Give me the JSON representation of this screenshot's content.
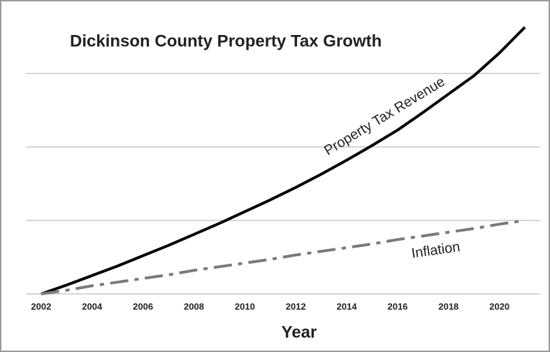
{
  "chart_data": {
    "type": "line",
    "title": "Dickinson County Property Tax Growth",
    "x_label": "Year",
    "x": [
      2002,
      2003,
      2004,
      2005,
      2006,
      2007,
      2008,
      2009,
      2010,
      2011,
      2012,
      2013,
      2014,
      2015,
      2016,
      2017,
      2018,
      2019,
      2020,
      2021
    ],
    "xlim": [
      2001.4,
      2021.6
    ],
    "xticks": [
      2002,
      2004,
      2006,
      2008,
      2010,
      2012,
      2014,
      2016,
      2018,
      2020
    ],
    "ylim": [
      0,
      4
    ],
    "yticks": [
      0,
      1,
      2,
      3
    ],
    "grid": true,
    "series": [
      {
        "name": "Property Tax Revenue",
        "color": "#000000",
        "style": "solid",
        "values": [
          0,
          0.12,
          0.25,
          0.38,
          0.52,
          0.66,
          0.81,
          0.96,
          1.12,
          1.28,
          1.45,
          1.63,
          1.82,
          2.02,
          2.23,
          2.47,
          2.72,
          2.97,
          3.28,
          3.63
        ]
      },
      {
        "name": "Inflation",
        "color": "#7a7a7a",
        "style": "dashdot",
        "values": [
          0,
          0.05,
          0.11,
          0.16,
          0.21,
          0.26,
          0.32,
          0.37,
          0.42,
          0.47,
          0.53,
          0.58,
          0.63,
          0.68,
          0.74,
          0.79,
          0.84,
          0.89,
          0.95,
          1.0
        ]
      }
    ]
  }
}
